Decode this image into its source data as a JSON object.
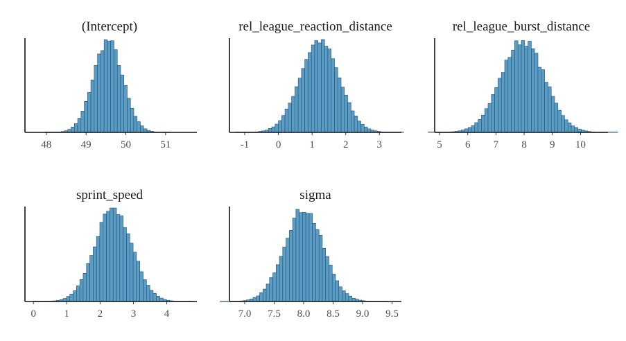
{
  "chart_data": [
    {
      "type": "bar",
      "title": "(Intercept)",
      "xlabel": "",
      "ylabel": "",
      "xlim": [
        47.55,
        51.7
      ],
      "ticks": [
        48,
        49,
        50,
        51
      ],
      "tick_labels": [
        "48",
        "49",
        "50",
        "51"
      ],
      "mean": 49.55,
      "sd": 0.37,
      "bin_width": 0.083,
      "grid": false
    },
    {
      "type": "bar",
      "title": "rel_league_reaction_distance",
      "xlabel": "",
      "ylabel": "",
      "xlim": [
        -1.35,
        3.55
      ],
      "ticks": [
        -1,
        0,
        1,
        2,
        3
      ],
      "tick_labels": [
        "-1",
        "0",
        "1",
        "2",
        "3"
      ],
      "mean": 1.22,
      "sd": 0.58,
      "bin_width": 0.098,
      "grid": false
    },
    {
      "type": "bar",
      "title": "rel_league_burst_distance",
      "xlabel": "",
      "ylabel": "",
      "xlim": [
        4.95,
        10.85
      ],
      "ticks": [
        5,
        6,
        7,
        8,
        9,
        10
      ],
      "tick_labels": [
        "5",
        "6",
        "7",
        "8",
        "9",
        "10"
      ],
      "mean": 7.95,
      "sd": 0.78,
      "bin_width": 0.118,
      "grid": false
    },
    {
      "type": "bar",
      "title": "sprint_speed",
      "xlabel": "",
      "ylabel": "",
      "xlim": [
        -0.15,
        4.8
      ],
      "ticks": [
        0,
        1,
        2,
        3,
        4
      ],
      "tick_labels": [
        "0",
        "1",
        "2",
        "3",
        "4"
      ],
      "mean": 2.4,
      "sd": 0.56,
      "bin_width": 0.1,
      "grid": false
    },
    {
      "type": "bar",
      "title": "sigma",
      "xlabel": "",
      "ylabel": "",
      "xlim": [
        6.8,
        9.6
      ],
      "ticks": [
        7.0,
        7.5,
        8.0,
        8.5,
        9.0,
        9.5
      ],
      "tick_labels": [
        "7.0",
        "7.5",
        "8.0",
        "8.5",
        "9.0",
        "9.5"
      ],
      "mean": 8.0,
      "sd": 0.33,
      "bin_width": 0.056,
      "grid": false
    }
  ],
  "colors": {
    "bar_fill": "#5b9cc4",
    "bar_edge": "#1f4e72",
    "axis": "#111111",
    "tick_text": "#4d4d4d",
    "title_text": "#1a1a1a"
  }
}
